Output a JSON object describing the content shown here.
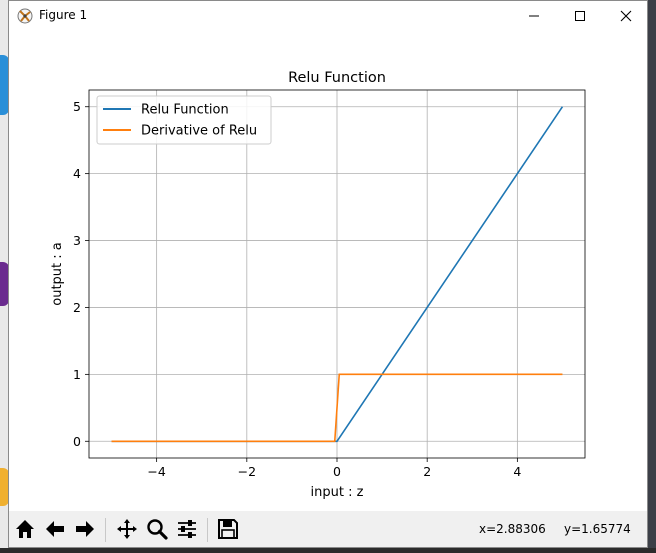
{
  "window": {
    "title": "Figure 1",
    "minimize_glyph": "—",
    "maximize_glyph": "☐",
    "close_glyph": "✕"
  },
  "colors": {
    "relu": "#1f77b4",
    "derivative": "#ff7f0e",
    "grid": "#b0b0b0",
    "toolbar_bg": "#f0f0f0"
  },
  "chart_data": {
    "type": "line",
    "title": "Relu Function",
    "xlabel": "input : z",
    "ylabel": "output : a",
    "xlim": [
      -5.5,
      5.5
    ],
    "ylim": [
      -0.25,
      5.25
    ],
    "xticks": [
      -4,
      -2,
      0,
      2,
      4
    ],
    "yticks": [
      0,
      1,
      2,
      3,
      4,
      5
    ],
    "xtick_labels": [
      "−4",
      "−2",
      "0",
      "2",
      "4"
    ],
    "ytick_labels": [
      "0",
      "1",
      "2",
      "3",
      "4",
      "5"
    ],
    "grid": true,
    "legend_position": "upper-left",
    "series": [
      {
        "name": "Relu Function",
        "color": "#1f77b4",
        "x": [
          -5,
          0,
          5
        ],
        "y": [
          0,
          0,
          5
        ]
      },
      {
        "name": "Derivative of Relu",
        "color": "#ff7f0e",
        "x": [
          -5,
          -0.05,
          0.05,
          5
        ],
        "y": [
          0,
          0,
          1,
          1
        ]
      }
    ]
  },
  "toolbar": {
    "icons": [
      "home-icon",
      "back-arrow-icon",
      "forward-arrow-icon",
      "pan-icon",
      "zoom-icon",
      "configure-subplots-icon",
      "save-icon"
    ],
    "x_readout": "x=2.88306",
    "y_readout": "y=1.65774"
  }
}
